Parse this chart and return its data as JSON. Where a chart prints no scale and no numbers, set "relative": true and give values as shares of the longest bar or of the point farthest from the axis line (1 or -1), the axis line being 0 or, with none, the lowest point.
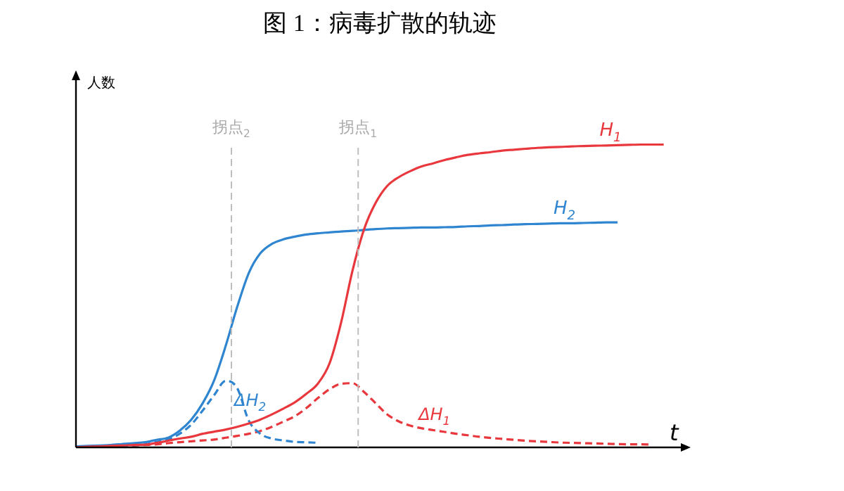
{
  "chart_data": {
    "type": "line",
    "title": "图 1：病毒扩散的轨迹",
    "ylabel": "人数",
    "xlabel": "t",
    "relative": true,
    "legend": false,
    "grid": false,
    "marker": "none",
    "categories": [
      null,
      null,
      null,
      null,
      null,
      null,
      null,
      null,
      null,
      null,
      null,
      null,
      null,
      null,
      null,
      null,
      null,
      null,
      null,
      null,
      null,
      null,
      null,
      null,
      null,
      null,
      null,
      null,
      null,
      null,
      null,
      null,
      null,
      null,
      null,
      null,
      null,
      null,
      null,
      null,
      null,
      null,
      null,
      null,
      null,
      null,
      null,
      null,
      null,
      null,
      null,
      null,
      null
    ],
    "series": [
      {
        "name": "H$_{1}$",
        "color": "#e8383d",
        "line_style": "solid",
        "values": [
          0,
          0.002,
          0.003,
          0.005,
          0.006,
          0.008,
          0.009,
          0.015,
          0.022,
          0.029,
          0.035,
          0.045,
          0.052,
          0.059,
          0.068,
          0.079,
          0.092,
          0.109,
          0.128,
          0.149,
          0.177,
          0.211,
          0.277,
          0.411,
          0.584,
          0.72,
          0.807,
          0.863,
          0.892,
          0.912,
          0.928,
          0.938,
          0.949,
          0.958,
          0.966,
          0.971,
          0.975,
          0.98,
          0.983,
          0.986,
          0.989,
          0.991,
          0.992,
          0.994,
          0.995,
          0.996,
          0.997,
          0.998,
          0.999,
          1,
          1,
          1,
          null
        ]
      },
      {
        "name": "H$_{2}$",
        "color": "#2f85cf",
        "line_style": "solid",
        "values": [
          0.003,
          0.005,
          0.006,
          0.008,
          0.011,
          0.014,
          0.017,
          0.025,
          0.032,
          0.055,
          0.091,
          0.146,
          0.222,
          0.336,
          0.465,
          0.576,
          0.641,
          0.672,
          0.687,
          0.696,
          0.703,
          0.707,
          0.71,
          0.713,
          0.715,
          0.718,
          0.721,
          0.723,
          0.724,
          0.725,
          0.726,
          0.726,
          0.727,
          0.728,
          0.73,
          0.731,
          0.733,
          0.734,
          0.736,
          0.737,
          0.738,
          0.739,
          0.74,
          0.74,
          0.741,
          0.742,
          0.743,
          0.743,
          null,
          null,
          null,
          null,
          null
        ]
      },
      {
        "name": "ΔH$_{2}$",
        "color": "#2f85cf",
        "line_style": "dashed",
        "values": [
          0.002,
          0.002,
          0.003,
          0.004,
          0.005,
          0.007,
          0.01,
          0.018,
          0.026,
          0.045,
          0.075,
          0.122,
          0.173,
          0.22,
          0.195,
          0.088,
          0.045,
          0.029,
          0.023,
          0.018,
          0.017,
          0.015,
          null,
          null,
          null,
          null,
          null,
          null,
          null,
          null,
          null,
          null,
          null,
          null,
          null,
          null,
          null,
          null,
          null,
          null,
          null,
          null,
          null,
          null,
          null,
          null,
          null,
          null,
          null,
          null,
          null,
          null,
          null
        ]
      },
      {
        "name": "ΔH$_{1}$",
        "color": "#e8383d",
        "line_style": "dashed",
        "values": [
          0,
          0.002,
          0.003,
          0.004,
          0.005,
          0.006,
          0.008,
          0.01,
          0.014,
          0.017,
          0.02,
          0.023,
          0.026,
          0.032,
          0.038,
          0.045,
          0.054,
          0.068,
          0.085,
          0.103,
          0.13,
          0.163,
          0.192,
          0.21,
          0.212,
          0.183,
          0.146,
          0.109,
          0.086,
          0.072,
          0.063,
          0.057,
          0.051,
          0.045,
          0.04,
          0.035,
          0.031,
          0.028,
          0.025,
          0.022,
          0.02,
          0.018,
          0.016,
          0.015,
          0.014,
          0.013,
          0.012,
          0.011,
          0.01,
          0.01,
          0.009,
          null,
          null
        ]
      }
    ],
    "annotations": [
      "拐点$_{2}$",
      "拐点$_{1}$"
    ]
  }
}
